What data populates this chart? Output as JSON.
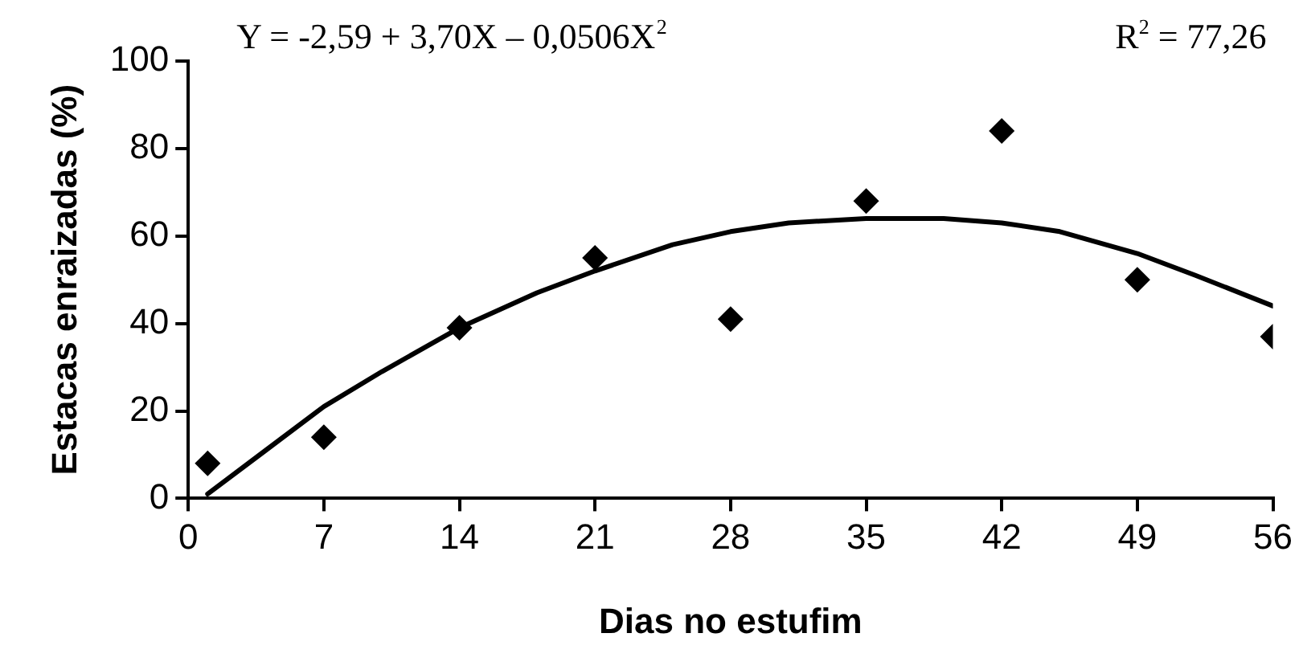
{
  "chart_data": {
    "type": "scatter",
    "xlabel": "Dias no estufim",
    "ylabel": "Estacas enraizadas (%)",
    "annotations": [
      "Y = -2,59 + 3,70X – 0,0506X$^{2}$",
      "R$^{2}$ = 77,26"
    ],
    "xlim": [
      0,
      56
    ],
    "xticks": [
      0,
      7,
      14,
      21,
      28,
      35,
      42,
      49,
      56
    ],
    "ylim": [
      0,
      100
    ],
    "yticks": [
      0,
      20,
      40,
      60,
      80,
      100
    ],
    "grid": false,
    "legend": false,
    "marker": "diamond",
    "series": [
      {
        "type": "scatter",
        "color": "#000000",
        "x": [
          1,
          7,
          14,
          21,
          28,
          35,
          42,
          49,
          56
        ],
        "values": [
          8,
          14,
          39,
          55,
          41,
          68,
          84,
          50,
          37
        ]
      },
      {
        "type": "line",
        "color": "#000000",
        "marker": "none",
        "line_style": "solid",
        "x": [
          1,
          4,
          7,
          10,
          14,
          18,
          21,
          25,
          28,
          31,
          35,
          37,
          39,
          42,
          45,
          49,
          52,
          56
        ],
        "values": [
          1,
          11,
          21,
          29,
          39,
          47,
          52,
          58,
          61,
          63,
          64,
          64,
          64,
          63,
          61,
          56,
          51,
          44
        ]
      }
    ]
  }
}
